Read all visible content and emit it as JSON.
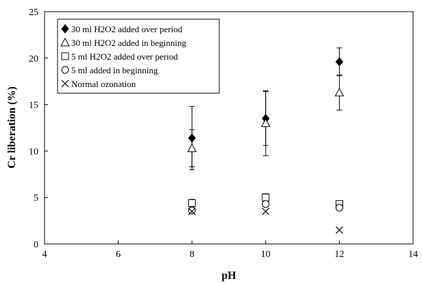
{
  "chart_data": {
    "type": "scatter",
    "title": "",
    "xlabel": "pH",
    "ylabel": "Cr liberation (%)",
    "xlim": [
      4,
      14
    ],
    "ylim": [
      0,
      25
    ],
    "xticks": [
      4,
      6,
      8,
      10,
      12,
      14
    ],
    "yticks": [
      0,
      5,
      10,
      15,
      20,
      25
    ],
    "grid": false,
    "legend_position": "top-left",
    "series": [
      {
        "name": "30 ml H2O2 added over period",
        "marker": "filled-diamond",
        "points": [
          {
            "x": 8,
            "y": 11.4,
            "err": 3.4
          },
          {
            "x": 10,
            "y": 13.5,
            "err": 2.9
          },
          {
            "x": 12,
            "y": 19.6,
            "err": 1.5
          }
        ]
      },
      {
        "name": "30 ml H2O2 added in beginning",
        "marker": "open-triangle",
        "points": [
          {
            "x": 8,
            "y": 10.3,
            "err": 2.0
          },
          {
            "x": 10,
            "y": 13.0,
            "err": 3.5
          },
          {
            "x": 12,
            "y": 16.3,
            "err": 1.9
          }
        ]
      },
      {
        "name": "5 ml H2O2 added over period",
        "marker": "open-square",
        "points": [
          {
            "x": 8,
            "y": 4.4,
            "err": 0.4
          },
          {
            "x": 10,
            "y": 5.0,
            "err": 0.4
          },
          {
            "x": 12,
            "y": 4.3,
            "err": 0.3
          }
        ]
      },
      {
        "name": "5 ml added in beginning",
        "marker": "open-circle",
        "points": [
          {
            "x": 8,
            "y": 3.6,
            "err": 0.2
          },
          {
            "x": 10,
            "y": 4.3,
            "err": 0.3
          },
          {
            "x": 12,
            "y": 3.9,
            "err": 0.3
          }
        ]
      },
      {
        "name": "Normal ozonation",
        "marker": "x-cross",
        "points": [
          {
            "x": 8,
            "y": 3.5,
            "err": 0
          },
          {
            "x": 10,
            "y": 3.5,
            "err": 0
          },
          {
            "x": 12,
            "y": 1.5,
            "err": 0
          }
        ]
      }
    ]
  }
}
